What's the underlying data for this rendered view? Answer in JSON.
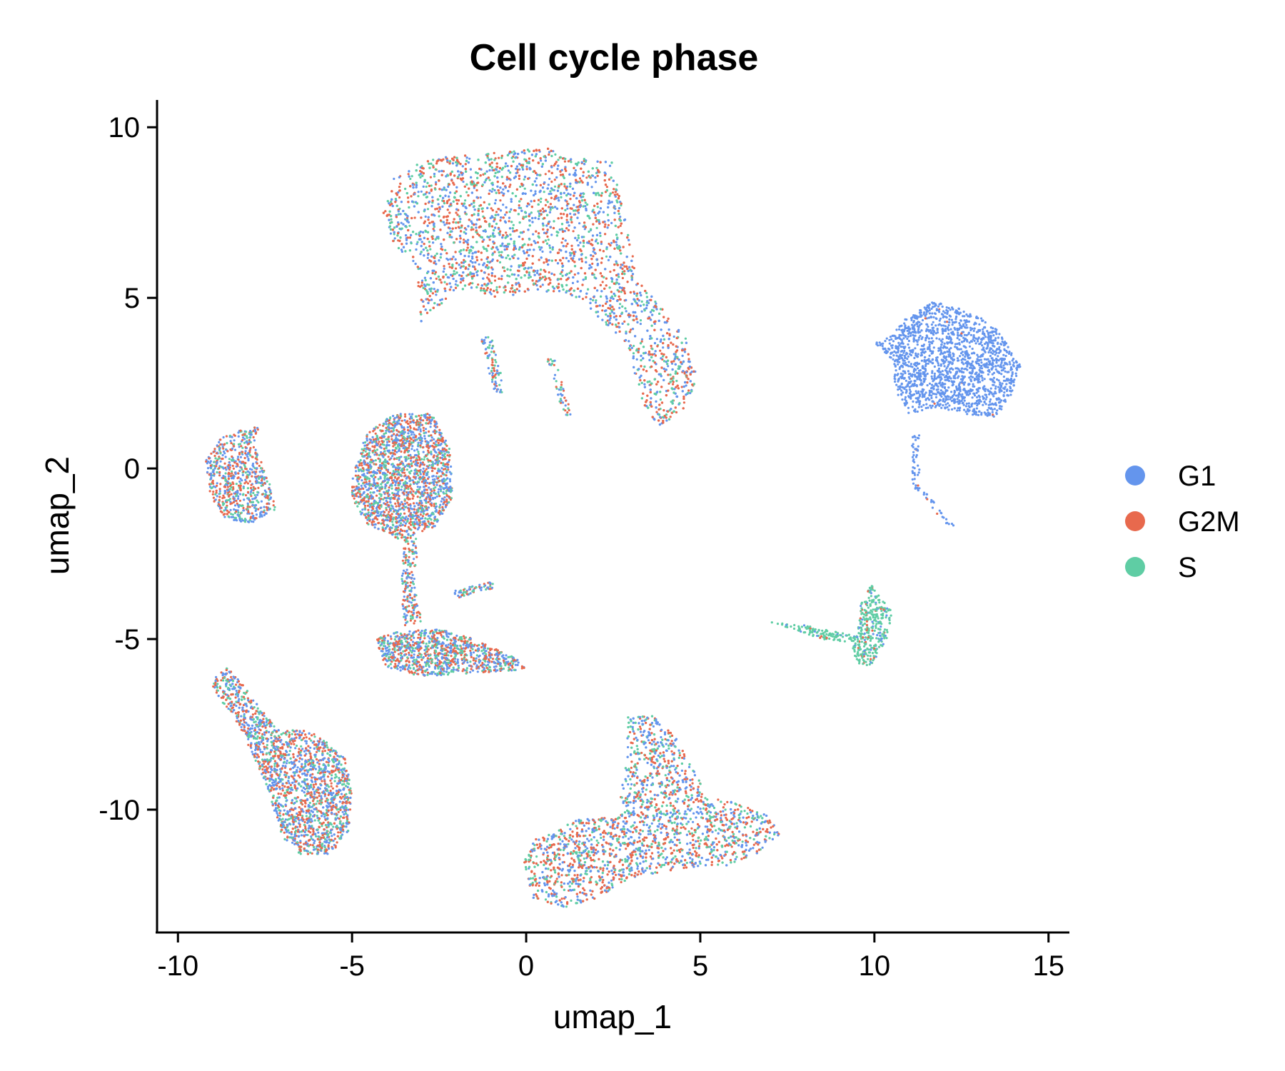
{
  "chart_data": {
    "type": "scatter",
    "title": "Cell cycle phase",
    "xlabel": "umap_1",
    "ylabel": "umap_2",
    "xlim": [
      -10.6,
      15.6
    ],
    "ylim": [
      -13.6,
      10.8
    ],
    "xticks": [
      -10,
      -5,
      0,
      5,
      10,
      15
    ],
    "yticks": [
      10,
      5,
      0,
      -5,
      -10
    ],
    "xtick_labels": [
      "-10",
      "-5",
      "0",
      "5",
      "10",
      "15"
    ],
    "ytick_labels": [
      "10",
      "5",
      "0",
      "-5",
      "-10"
    ],
    "grid": false,
    "legend_position": "right",
    "series": [
      {
        "name": "G1",
        "color": "#6495ED"
      },
      {
        "name": "G2M",
        "color": "#E8694D"
      },
      {
        "name": "S",
        "color": "#5FCDA4"
      }
    ],
    "clusters": [
      {
        "label": "top-large",
        "mix": [
          0.36,
          0.38,
          0.26
        ],
        "n": 5200,
        "polygon": [
          [
            -4.1,
            7.5
          ],
          [
            -3.8,
            8.5
          ],
          [
            -2.8,
            9.1
          ],
          [
            -0.5,
            9.3
          ],
          [
            0.5,
            9.4
          ],
          [
            2.5,
            9.0
          ],
          [
            2.6,
            8.4
          ],
          [
            2.8,
            7.5
          ],
          [
            3.0,
            6.5
          ],
          [
            3.3,
            5.4
          ],
          [
            4.0,
            4.6
          ],
          [
            4.6,
            3.8
          ],
          [
            4.9,
            2.7
          ],
          [
            4.6,
            1.8
          ],
          [
            3.8,
            1.2
          ],
          [
            3.3,
            2.0
          ],
          [
            3.0,
            3.0
          ],
          [
            2.5,
            4.0
          ],
          [
            1.5,
            5.0
          ],
          [
            0.5,
            5.2
          ],
          [
            -0.8,
            5.0
          ],
          [
            -2.0,
            5.3
          ],
          [
            -3.0,
            4.2
          ],
          [
            -3.2,
            5.8
          ],
          [
            -3.8,
            6.6
          ]
        ]
      },
      {
        "label": "left-small",
        "mix": [
          0.4,
          0.4,
          0.2
        ],
        "n": 700,
        "polygon": [
          [
            -9.2,
            0.3
          ],
          [
            -8.8,
            0.9
          ],
          [
            -8.0,
            1.2
          ],
          [
            -7.6,
            1.4
          ],
          [
            -7.8,
            0.7
          ],
          [
            -7.4,
            -0.3
          ],
          [
            -7.2,
            -1.2
          ],
          [
            -7.9,
            -1.6
          ],
          [
            -8.6,
            -1.5
          ],
          [
            -9.1,
            -0.8
          ]
        ]
      },
      {
        "label": "center-blob",
        "mix": [
          0.38,
          0.36,
          0.26
        ],
        "n": 1900,
        "polygon": [
          [
            -5.0,
            -0.3
          ],
          [
            -4.6,
            1.0
          ],
          [
            -3.8,
            1.6
          ],
          [
            -2.7,
            1.6
          ],
          [
            -2.2,
            0.6
          ],
          [
            -2.1,
            -0.8
          ],
          [
            -2.6,
            -1.7
          ],
          [
            -3.6,
            -2.1
          ],
          [
            -4.6,
            -1.6
          ],
          [
            -5.0,
            -0.9
          ]
        ]
      },
      {
        "label": "center-bridge",
        "mix": [
          0.35,
          0.4,
          0.25
        ],
        "n": 180,
        "polygon": [
          [
            -3.5,
            -2.0
          ],
          [
            -3.1,
            -2.0
          ],
          [
            -3.2,
            -3.4
          ],
          [
            -3.0,
            -4.5
          ],
          [
            -3.5,
            -4.6
          ],
          [
            -3.6,
            -3.4
          ]
        ]
      },
      {
        "label": "center-lower",
        "mix": [
          0.34,
          0.38,
          0.28
        ],
        "n": 1000,
        "polygon": [
          [
            -4.3,
            -5.0
          ],
          [
            -3.8,
            -4.8
          ],
          [
            -2.5,
            -4.7
          ],
          [
            -1.5,
            -5.0
          ],
          [
            -0.2,
            -5.6
          ],
          [
            0.0,
            -5.9
          ],
          [
            -1.5,
            -6.0
          ],
          [
            -3.0,
            -6.1
          ],
          [
            -4.1,
            -5.8
          ]
        ]
      },
      {
        "label": "lower-left",
        "mix": [
          0.4,
          0.36,
          0.24
        ],
        "n": 2500,
        "polygon": [
          [
            -9.1,
            -6.3
          ],
          [
            -8.6,
            -5.8
          ],
          [
            -8.0,
            -6.5
          ],
          [
            -7.2,
            -7.6
          ],
          [
            -6.2,
            -7.7
          ],
          [
            -5.2,
            -8.4
          ],
          [
            -5.0,
            -9.5
          ],
          [
            -5.1,
            -10.6
          ],
          [
            -5.6,
            -11.3
          ],
          [
            -6.5,
            -11.3
          ],
          [
            -7.0,
            -10.8
          ],
          [
            -7.5,
            -9.2
          ],
          [
            -8.2,
            -7.6
          ]
        ]
      },
      {
        "label": "bottom-center",
        "mix": [
          0.36,
          0.38,
          0.26
        ],
        "n": 3400,
        "polygon": [
          [
            -0.1,
            -11.5
          ],
          [
            0.3,
            -10.8
          ],
          [
            1.5,
            -10.3
          ],
          [
            2.6,
            -10.2
          ],
          [
            2.9,
            -8.5
          ],
          [
            2.9,
            -7.3
          ],
          [
            3.6,
            -7.2
          ],
          [
            4.3,
            -7.9
          ],
          [
            4.7,
            -8.6
          ],
          [
            5.2,
            -9.6
          ],
          [
            6.0,
            -9.8
          ],
          [
            7.0,
            -10.2
          ],
          [
            7.3,
            -10.7
          ],
          [
            6.6,
            -11.3
          ],
          [
            5.6,
            -11.7
          ],
          [
            4.6,
            -11.7
          ],
          [
            3.0,
            -12.0
          ],
          [
            2.0,
            -12.6
          ],
          [
            1.0,
            -12.9
          ],
          [
            0.2,
            -12.6
          ]
        ]
      },
      {
        "label": "right-G1",
        "mix": [
          0.995,
          0.005,
          0.0
        ],
        "n": 1700,
        "polygon": [
          [
            10.0,
            3.7
          ],
          [
            10.5,
            3.9
          ],
          [
            10.9,
            4.4
          ],
          [
            11.7,
            4.9
          ],
          [
            12.8,
            4.6
          ],
          [
            13.6,
            4.0
          ],
          [
            14.2,
            3.0
          ],
          [
            14.0,
            2.2
          ],
          [
            13.5,
            1.5
          ],
          [
            12.6,
            1.6
          ],
          [
            11.8,
            1.8
          ],
          [
            11.0,
            1.6
          ],
          [
            10.6,
            2.3
          ],
          [
            10.5,
            3.2
          ]
        ]
      },
      {
        "label": "right-strand",
        "mix": [
          0.95,
          0.05,
          0.0
        ],
        "n": 70,
        "polygon": [
          [
            11.05,
            1.0
          ],
          [
            11.3,
            1.0
          ],
          [
            11.3,
            -0.5
          ],
          [
            12.3,
            -1.7
          ],
          [
            12.0,
            -1.6
          ],
          [
            11.1,
            -0.5
          ]
        ]
      },
      {
        "label": "right-S-arc",
        "mix": [
          0.12,
          0.08,
          0.8
        ],
        "n": 450,
        "polygon": [
          [
            7.0,
            -4.5
          ],
          [
            8.0,
            -4.6
          ],
          [
            9.5,
            -4.9
          ],
          [
            9.6,
            -4.0
          ],
          [
            9.9,
            -3.4
          ],
          [
            10.5,
            -4.2
          ],
          [
            10.4,
            -4.9
          ],
          [
            9.9,
            -5.8
          ],
          [
            9.5,
            -5.7
          ],
          [
            9.3,
            -5.1
          ],
          [
            8.5,
            -5.0
          ]
        ]
      },
      {
        "label": "small-streak-mid",
        "mix": [
          0.4,
          0.3,
          0.3
        ],
        "n": 60,
        "polygon": [
          [
            -2.1,
            -3.6
          ],
          [
            -1.0,
            -3.3
          ],
          [
            -0.9,
            -3.5
          ],
          [
            -2.0,
            -3.8
          ]
        ]
      },
      {
        "label": "streak-top-a",
        "mix": [
          0.35,
          0.35,
          0.3
        ],
        "n": 80,
        "polygon": [
          [
            -1.3,
            3.8
          ],
          [
            -1.0,
            3.9
          ],
          [
            -0.6,
            2.3
          ],
          [
            -0.9,
            2.1
          ]
        ]
      },
      {
        "label": "streak-top-b",
        "mix": [
          0.35,
          0.35,
          0.3
        ],
        "n": 50,
        "polygon": [
          [
            0.6,
            3.2
          ],
          [
            0.8,
            3.3
          ],
          [
            1.3,
            1.6
          ],
          [
            1.1,
            1.5
          ]
        ]
      }
    ]
  }
}
